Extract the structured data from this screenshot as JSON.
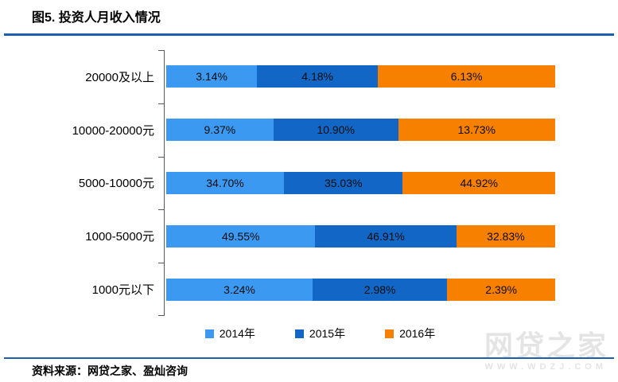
{
  "title": "图5. 投资人月收入情况",
  "source": "资料来源：网贷之家、盈灿咨询",
  "watermark": {
    "name": "网贷之家",
    "url": "WWW.WDZJ.COM"
  },
  "colors": {
    "series_2014": "#3b99f2",
    "series_2015": "#1266c5",
    "series_2016": "#f88000",
    "divider": "#1c5fae",
    "watermark": "#e4e4e4"
  },
  "chart_data": {
    "type": "bar",
    "subtype": "horizontal-100pct-stacked",
    "title": "图5. 投资人月收入情况",
    "categories": [
      "20000及以上",
      "10000-20000元",
      "5000-10000元",
      "1000-5000元",
      "1000元以下"
    ],
    "series": [
      {
        "name": "2014年",
        "color": "#3b99f2",
        "values": [
          3.14,
          9.37,
          34.7,
          49.55,
          3.24
        ]
      },
      {
        "name": "2015年",
        "color": "#1266c5",
        "values": [
          4.18,
          10.9,
          35.03,
          46.91,
          2.98
        ]
      },
      {
        "name": "2016年",
        "color": "#f88000",
        "values": [
          6.13,
          13.73,
          44.92,
          32.83,
          2.39
        ]
      }
    ],
    "value_format": "percent-2-decimals",
    "data_labels": "inside-center",
    "legend_position": "bottom",
    "grid": false,
    "axis": {
      "y_categories_right_aligned": true,
      "ticks_at_category_boundaries": true
    }
  }
}
